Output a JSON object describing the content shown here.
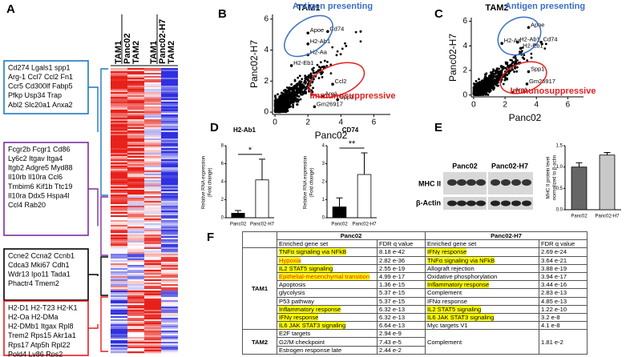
{
  "heatmap": {
    "panel": "A",
    "group_labels": [
      "Panc02",
      "Panc02-H7"
    ],
    "column_labels": [
      "TAM1",
      "TAM2",
      "TAM1",
      "TAM2"
    ],
    "gene_boxes": [
      {
        "color": "#1f77c4",
        "lines": [
          "Cd274 Lgals1 spp1",
          "Arg-1 Ccl7 Ccl2 Fn1",
          "Ccr5 Cd300lf Fabp5",
          "Pfkp Usp34 Trap",
          "Abl2 Slc20a1 Anxa2"
        ]
      },
      {
        "color": "#7a2fa0",
        "lines": [
          "Fcgr2b Fcgr1 Cd86",
          "Ly6c2 Itgav Itga4",
          "Itgb2 Adgre5 Myd88",
          "Il10rb Il10ra Ccl6",
          "Tmbim6 Kif1b Ttc19",
          "Il10ra Ddx5 Hspa4l",
          "Ccl4 Rab20"
        ]
      },
      {
        "color": "#000000",
        "lines": [
          "Ccne2 Ccna2 Ccnb1",
          "Cdca3 Mki67 Cdh1",
          "Wdr13 Ipo11 Tada1",
          "Phactr4 Tmem2"
        ]
      },
      {
        "color": "#e02020",
        "lines": [
          "H2-D1 H2-T23 H2-K1",
          "H2-Oa H2-DMa",
          "H2-DMb1 Itgax Rpl8",
          "Trem2 Rps15 Akr1a1",
          "Rps17 Atp5h Rpl22",
          "Pold4 Ly86 Rps2"
        ]
      }
    ]
  },
  "chart_data": [
    {
      "type": "scatter",
      "panel": "B",
      "title": "TAM1",
      "x_label": "Panc02",
      "y_label": "Panc02-H7",
      "xlim": [
        -0.15,
        7
      ],
      "ylim": [
        -0.15,
        6.3
      ],
      "xticks": [
        0,
        2,
        4,
        6
      ],
      "yticks": [
        0,
        2,
        4,
        6
      ],
      "color": "#000000",
      "annotations": [
        "Antigen presenting",
        "Immunosuppressive"
      ],
      "annotation_colors": [
        "#3a6fc4",
        "#e02020"
      ],
      "labeled_points": [
        {
          "label": "Apoe",
          "x": 2.0,
          "y": 5.1
        },
        {
          "label": "Cd74",
          "x": 3.2,
          "y": 5.2
        },
        {
          "label": "H2-Ab1",
          "x": 2.0,
          "y": 4.4
        },
        {
          "label": "H2-Aa",
          "x": 2.0,
          "y": 3.7
        },
        {
          "label": "H2-Eb1",
          "x": 1.0,
          "y": 3.0
        },
        {
          "label": "Ccl2",
          "x": 3.5,
          "y": 1.8
        },
        {
          "label": "Arg1",
          "x": 2.9,
          "y": 1.0
        },
        {
          "label": "Spp1",
          "x": 3.8,
          "y": 0.8
        },
        {
          "label": "Gm26917",
          "x": 2.4,
          "y": 0.35
        }
      ]
    },
    {
      "type": "scatter",
      "panel": "C",
      "title": "TAM2",
      "x_label": "Panc02",
      "y_label": "Panc02-H7",
      "xlim": [
        -0.15,
        7
      ],
      "ylim": [
        -0.15,
        6.3
      ],
      "xticks": [
        0,
        2,
        4,
        6
      ],
      "yticks": [
        0,
        2,
        4,
        6
      ],
      "color": "#000000",
      "annotations": [
        "Antigen presenting",
        "Immunosuppressive"
      ],
      "annotation_colors": [
        "#3a6fc4",
        "#e02020"
      ],
      "labeled_points": [
        {
          "label": "Apoe",
          "x": 3.5,
          "y": 5.5
        },
        {
          "label": "H2-Aa",
          "x": 1.8,
          "y": 4.2
        },
        {
          "label": "H2-Ab1",
          "x": 2.8,
          "y": 4.3
        },
        {
          "label": "Cd74",
          "x": 4.3,
          "y": 4.3
        },
        {
          "label": "H2-Eb1",
          "x": 3.0,
          "y": 3.8
        },
        {
          "label": "Spp1",
          "x": 3.5,
          "y": 1.9
        },
        {
          "label": "Gm26917",
          "x": 3.4,
          "y": 0.9
        },
        {
          "label": "Arg1",
          "x": 2.5,
          "y": 0.2
        }
      ]
    },
    {
      "type": "bar",
      "panel": "D",
      "title": "H2-Ab1",
      "y_label": [
        "Relative RNA expression",
        "(Fold change)"
      ],
      "categories": [
        "Panc02",
        "Panc02-H7"
      ],
      "values": [
        0.5,
        4.2
      ],
      "errors": [
        0.3,
        2.3
      ],
      "colors": [
        "#000000",
        "#ffffff"
      ],
      "ylim": [
        0,
        8
      ],
      "yticks": [
        0,
        2,
        4,
        6,
        8
      ],
      "significance": "*"
    },
    {
      "type": "bar",
      "title": "CD74",
      "y_label": [
        "Relative RNA expression",
        "(Fold change)"
      ],
      "categories": [
        "Panc02",
        "Panc02-H7"
      ],
      "values": [
        0.6,
        2.4
      ],
      "errors": [
        0.5,
        1.2
      ],
      "colors": [
        "#000000",
        "#ffffff"
      ],
      "ylim": [
        0,
        4
      ],
      "yticks": [
        0,
        1,
        2,
        3,
        4
      ],
      "significance": "**"
    },
    {
      "type": "bar",
      "panel": "E",
      "y_label": [
        "MHC II protein level",
        "normalized to β-actin"
      ],
      "categories": [
        "Panc02",
        "Panc02-H7"
      ],
      "values": [
        1.0,
        1.28
      ],
      "errors": [
        0.1,
        0.06
      ],
      "colors": [
        "#666666",
        "#c8c8c8"
      ],
      "ylim": [
        0,
        1.5
      ],
      "yticks": [
        {
          "value": 0,
          "label": "0.0"
        },
        {
          "value": 0.5,
          "label": "0.5"
        },
        {
          "value": 1,
          "label": "1.0"
        },
        {
          "value": 1.5,
          "label": "1.5"
        }
      ]
    }
  ],
  "blot": {
    "lane_labels": [
      "Panc02",
      "Panc02-H7"
    ],
    "row_labels": [
      "MHC II",
      "β-Actin"
    ]
  },
  "table": {
    "panel": "F",
    "columns": [
      "Panc02",
      "Panc02-H7"
    ],
    "subcolumns": [
      "Enriched gene set",
      "FDR q value"
    ],
    "groups": [
      {
        "name": "TAM1",
        "rows": [
          [
            {
              "set": "TNFα signaling via NFkB",
              "q": "8.18 e-42",
              "highlight": true
            },
            {
              "set": "IFNγ response",
              "q": "2.69 e-24",
              "highlight": true
            }
          ],
          [
            {
              "set": "Hypoxia",
              "q": "2.82 e-36",
              "highlight": true,
              "color": "#e02020"
            },
            {
              "set": "TNFα signaling via NFkB",
              "q": "3.64 e-21",
              "highlight": true
            }
          ],
          [
            {
              "set": "IL2 STAT5 signaling",
              "q": "2.55 e-19",
              "highlight": true
            },
            {
              "set": "Allograft rejection",
              "q": "3.88 e-19"
            }
          ],
          [
            {
              "set": "Epithelial-mesenchymal transition",
              "q": "4.99 e-17",
              "highlight": true,
              "color": "#e02020"
            },
            {
              "set": "Oxidative phosphorylation",
              "q": "3.94 e-17"
            }
          ],
          [
            {
              "set": "Apoptosis",
              "q": "1.36 e-15"
            },
            {
              "set": "Inflammatory response",
              "q": "3.44 e-16",
              "highlight": true
            }
          ],
          [
            {
              "set": "glycolysis",
              "q": "5.37 e-15"
            },
            {
              "set": "Complement",
              "q": "2.83 e-13"
            }
          ],
          [
            {
              "set": "P53 pathway",
              "q": "5.37 e-15"
            },
            {
              "set": "IFNα response",
              "q": "4.85 e-13"
            }
          ],
          [
            {
              "set": "Inflammatory response",
              "q": "6.32 e-13",
              "highlight": true
            },
            {
              "set": "IL2 STAT5 signaling",
              "q": "1.22 e-10",
              "highlight": true
            }
          ],
          [
            {
              "set": "IFNγ response",
              "q": "6.32 e-13",
              "highlight": true
            },
            {
              "set": "IL6 JAK STAT3 signaling",
              "q": "3.2 e-8",
              "highlight": true
            }
          ],
          [
            {
              "set": "IL6 JAK STAT3 signaling",
              "q": "6.64 e-13",
              "highlight": true
            },
            {
              "set": "Myc targets V1",
              "q": "4.1 e-8"
            }
          ]
        ]
      },
      {
        "name": "TAM2",
        "rows": [
          [
            {
              "set": "E2F targets",
              "q": "2.94 e-9"
            }
          ],
          [
            {
              "set": "G2/M checkpoint",
              "q": "7.43 e-5"
            }
          ],
          [
            {
              "set": "Estrogen response late",
              "q": "2.44 e-2"
            }
          ]
        ],
        "shared": {
          "set": "Complement",
          "q": "1.81 e-2"
        }
      }
    ]
  }
}
